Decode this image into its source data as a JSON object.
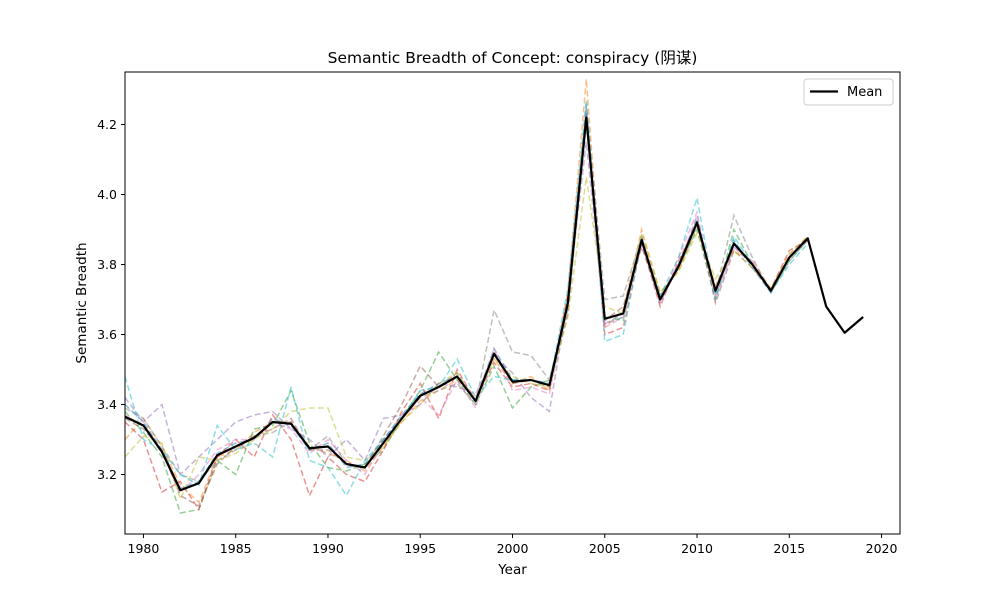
{
  "chart_data": {
    "type": "line",
    "title": "Semantic Breadth of Concept: conspiracy (阴谋)",
    "xlabel": "Year",
    "ylabel": "Semantic Breadth",
    "xlim": [
      1979,
      2021
    ],
    "ylim": [
      3.03,
      4.35
    ],
    "xticks": [
      1980,
      1985,
      1990,
      1995,
      2000,
      2005,
      2010,
      2015,
      2020
    ],
    "yticks": [
      3.2,
      3.4,
      3.6,
      3.8,
      4.0,
      4.2
    ],
    "ytick_labels": [
      "3.2",
      "3.4",
      "3.6",
      "3.8",
      "4.0",
      "4.2"
    ],
    "grid": false,
    "legend": {
      "position": "top-right",
      "entries": [
        "Mean"
      ]
    },
    "mean_series": {
      "name": "Mean",
      "color": "#000000",
      "x": [
        1979,
        1980,
        1981,
        1982,
        1983,
        1984,
        1985,
        1986,
        1987,
        1988,
        1989,
        1990,
        1991,
        1992,
        1993,
        1994,
        1995,
        1996,
        1997,
        1998,
        1999,
        2000,
        2001,
        2002,
        2003,
        2004,
        2005,
        2006,
        2007,
        2008,
        2009,
        2010,
        2011,
        2012,
        2013,
        2014,
        2015,
        2016,
        2017,
        2018,
        2019
      ],
      "y": [
        3.365,
        3.34,
        3.265,
        3.155,
        3.175,
        3.255,
        3.28,
        3.305,
        3.35,
        3.345,
        3.275,
        3.28,
        3.23,
        3.22,
        3.29,
        3.36,
        3.425,
        3.45,
        3.48,
        3.41,
        3.545,
        3.465,
        3.47,
        3.455,
        3.69,
        4.22,
        3.645,
        3.66,
        3.87,
        3.7,
        3.795,
        3.92,
        3.725,
        3.86,
        3.8,
        3.725,
        3.82,
        3.875,
        3.68,
        3.605,
        3.65
      ]
    },
    "individual_series": [
      {
        "color": "#1f77b4",
        "y": [
          3.4,
          3.35,
          3.27,
          3.16,
          3.18,
          3.26,
          3.29,
          3.3,
          3.36,
          3.34,
          3.27,
          3.29,
          3.22,
          3.23,
          3.3,
          3.37,
          3.43,
          3.46,
          3.48,
          3.41,
          3.56,
          3.47,
          3.47,
          3.46,
          3.7,
          4.25,
          3.63,
          3.65,
          3.88,
          3.69,
          3.8,
          3.93,
          3.72,
          3.87,
          3.79,
          3.72,
          3.82,
          3.87
        ]
      },
      {
        "color": "#ff7f0e",
        "y": [
          3.3,
          3.36,
          3.28,
          3.17,
          3.12,
          3.25,
          3.27,
          3.32,
          3.35,
          3.35,
          3.28,
          3.26,
          3.24,
          3.21,
          3.28,
          3.35,
          3.41,
          3.44,
          3.47,
          3.42,
          3.53,
          3.46,
          3.48,
          3.44,
          3.72,
          4.33,
          3.62,
          3.67,
          3.9,
          3.72,
          3.78,
          3.91,
          3.74,
          3.84,
          3.81,
          3.73,
          3.83,
          3.88
        ]
      },
      {
        "color": "#2ca02c",
        "y": [
          3.38,
          3.32,
          3.25,
          3.09,
          3.1,
          3.24,
          3.2,
          3.33,
          3.34,
          3.44,
          3.29,
          3.22,
          3.21,
          3.23,
          3.27,
          3.36,
          3.44,
          3.55,
          3.47,
          3.4,
          3.51,
          3.39,
          3.45,
          3.47,
          3.68,
          4.2,
          3.65,
          3.64,
          3.87,
          3.71,
          3.79,
          3.9,
          3.7,
          3.9,
          3.8,
          3.72,
          3.81,
          3.87
        ]
      },
      {
        "color": "#d62728",
        "y": [
          3.35,
          3.3,
          3.15,
          3.18,
          3.1,
          3.25,
          3.3,
          3.25,
          3.37,
          3.3,
          3.14,
          3.25,
          3.2,
          3.18,
          3.27,
          3.38,
          3.46,
          3.36,
          3.5,
          3.41,
          3.52,
          3.45,
          3.46,
          3.44,
          3.71,
          4.23,
          3.6,
          3.62,
          3.86,
          3.68,
          3.81,
          3.92,
          3.73,
          3.86,
          3.8,
          3.73,
          3.84,
          3.87
        ]
      },
      {
        "color": "#9467bd",
        "y": [
          3.42,
          3.35,
          3.4,
          3.2,
          3.25,
          3.3,
          3.35,
          3.37,
          3.38,
          3.33,
          3.3,
          3.25,
          3.3,
          3.24,
          3.36,
          3.37,
          3.4,
          3.46,
          3.45,
          3.43,
          3.54,
          3.49,
          3.42,
          3.38,
          3.7,
          4.15,
          3.63,
          3.66,
          3.87,
          3.7,
          3.79,
          3.94,
          3.71,
          3.85,
          3.8,
          3.72,
          3.82,
          3.87
        ]
      },
      {
        "color": "#8c564b",
        "y": [
          3.36,
          3.33,
          3.27,
          3.14,
          3.11,
          3.23,
          3.28,
          3.31,
          3.33,
          3.36,
          3.27,
          3.27,
          3.23,
          3.22,
          3.31,
          3.4,
          3.51,
          3.45,
          3.49,
          3.41,
          3.55,
          3.46,
          3.47,
          3.45,
          3.66,
          4.22,
          3.64,
          3.68,
          3.85,
          3.7,
          3.8,
          3.92,
          3.69,
          3.84,
          3.79,
          3.73,
          3.82,
          3.87
        ]
      },
      {
        "color": "#e377c2",
        "y": [
          3.37,
          3.34,
          3.26,
          3.15,
          3.2,
          3.27,
          3.3,
          3.3,
          3.35,
          3.33,
          3.26,
          3.3,
          3.24,
          3.2,
          3.29,
          3.36,
          3.42,
          3.37,
          3.47,
          3.39,
          3.56,
          3.44,
          3.45,
          3.43,
          3.69,
          4.24,
          3.62,
          3.65,
          3.86,
          3.69,
          3.82,
          3.95,
          3.7,
          3.85,
          3.81,
          3.72,
          3.82,
          3.87
        ]
      },
      {
        "color": "#7f7f7f",
        "y": [
          3.39,
          3.36,
          3.28,
          3.2,
          3.18,
          3.24,
          3.27,
          3.31,
          3.32,
          3.35,
          3.27,
          3.31,
          3.23,
          3.22,
          3.3,
          3.36,
          3.42,
          3.44,
          3.46,
          3.4,
          3.67,
          3.55,
          3.54,
          3.47,
          3.67,
          4.26,
          3.7,
          3.71,
          3.88,
          3.71,
          3.79,
          3.91,
          3.72,
          3.94,
          3.82,
          3.72,
          3.81,
          3.87
        ]
      },
      {
        "color": "#bcbd22",
        "y": [
          3.25,
          3.31,
          3.29,
          3.13,
          3.25,
          3.24,
          3.26,
          3.3,
          3.33,
          3.38,
          3.39,
          3.39,
          3.25,
          3.24,
          3.28,
          3.35,
          3.4,
          3.46,
          3.49,
          3.41,
          3.53,
          3.48,
          3.46,
          3.45,
          3.65,
          4.05,
          3.68,
          3.66,
          3.89,
          3.72,
          3.78,
          3.89,
          3.76,
          3.84,
          3.79,
          3.73,
          3.83,
          3.88
        ]
      },
      {
        "color": "#17becf",
        "y": [
          3.48,
          3.3,
          3.27,
          3.2,
          3.17,
          3.34,
          3.27,
          3.29,
          3.25,
          3.45,
          3.24,
          3.22,
          3.14,
          3.24,
          3.3,
          3.36,
          3.44,
          3.45,
          3.53,
          3.42,
          3.48,
          3.47,
          3.47,
          3.46,
          3.73,
          4.27,
          3.58,
          3.6,
          3.87,
          3.71,
          3.82,
          3.99,
          3.7,
          3.88,
          3.8,
          3.72,
          3.8,
          3.86
        ]
      }
    ]
  }
}
